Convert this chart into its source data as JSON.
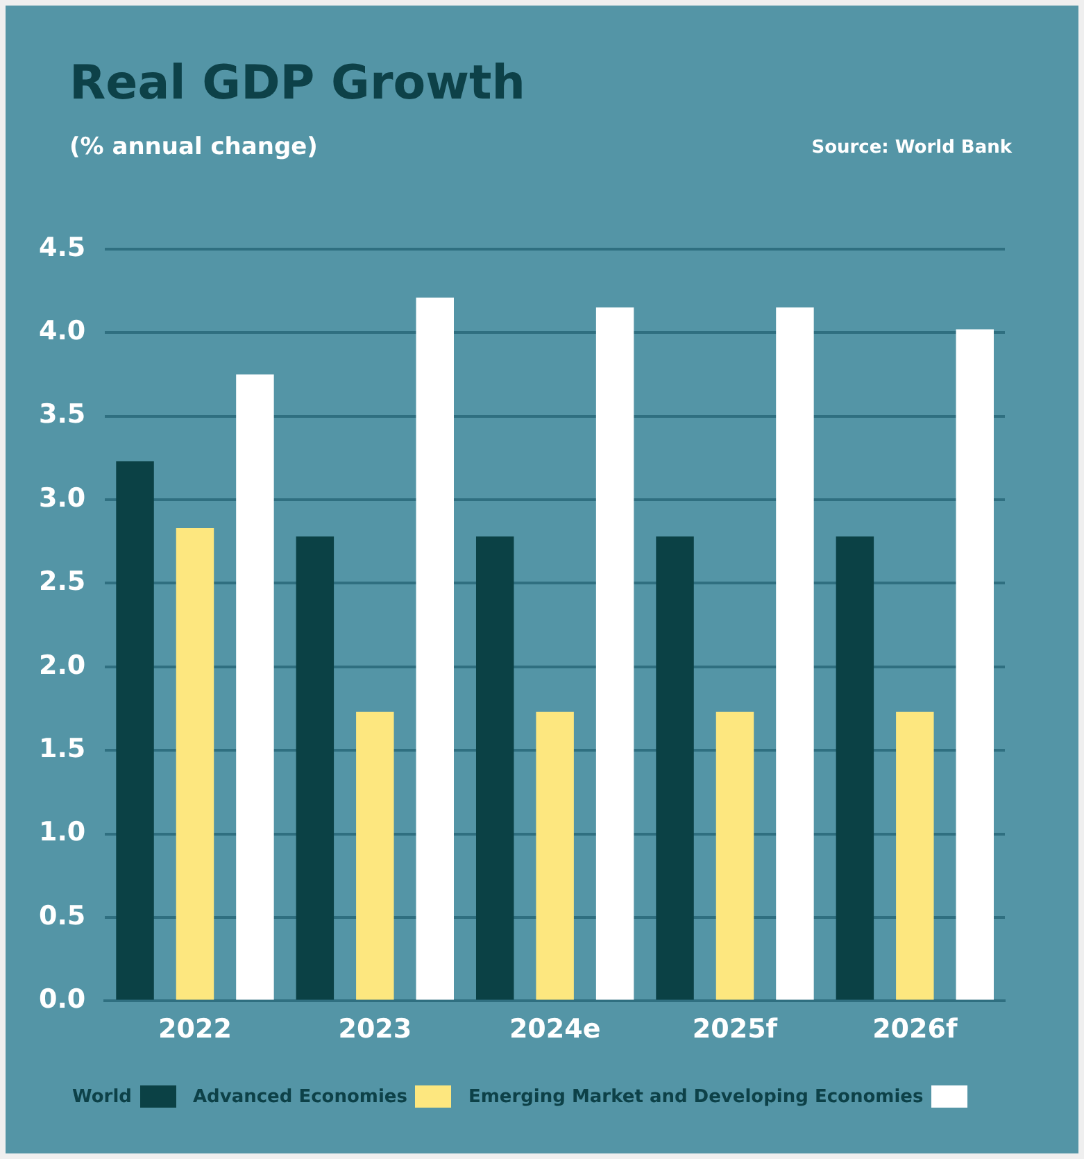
{
  "chart_data": {
    "type": "bar",
    "title": "Real GDP Growth",
    "subtitle": "(% annual change)",
    "annotations": [
      "Source: World Bank"
    ],
    "categories": [
      "2022",
      "2023",
      "2024e",
      "2025f",
      "2026f"
    ],
    "series": [
      {
        "name": "World",
        "color": "#0b4145",
        "values": [
          3.23,
          2.78,
          2.78,
          2.78,
          2.78
        ]
      },
      {
        "name": "Advanced Economies",
        "color": "#fde77f",
        "values": [
          2.83,
          1.73,
          1.73,
          1.73,
          1.73
        ]
      },
      {
        "name": "Emerging Market and Developing Economies",
        "color": "#ffffff",
        "values": [
          3.75,
          4.21,
          4.15,
          4.15,
          4.02
        ]
      }
    ],
    "ylim": [
      0,
      4.5
    ],
    "yticks": [
      {
        "value": 0,
        "label": "0.0"
      },
      0.5,
      {
        "value": 1,
        "label": "1.0"
      },
      1.5,
      {
        "value": 2,
        "label": "2.0"
      },
      2.5,
      {
        "value": 3,
        "label": "3.0"
      },
      3.5,
      {
        "value": 4,
        "label": "4.0"
      },
      4.5
    ],
    "grid": "y",
    "legend": "bottom"
  }
}
